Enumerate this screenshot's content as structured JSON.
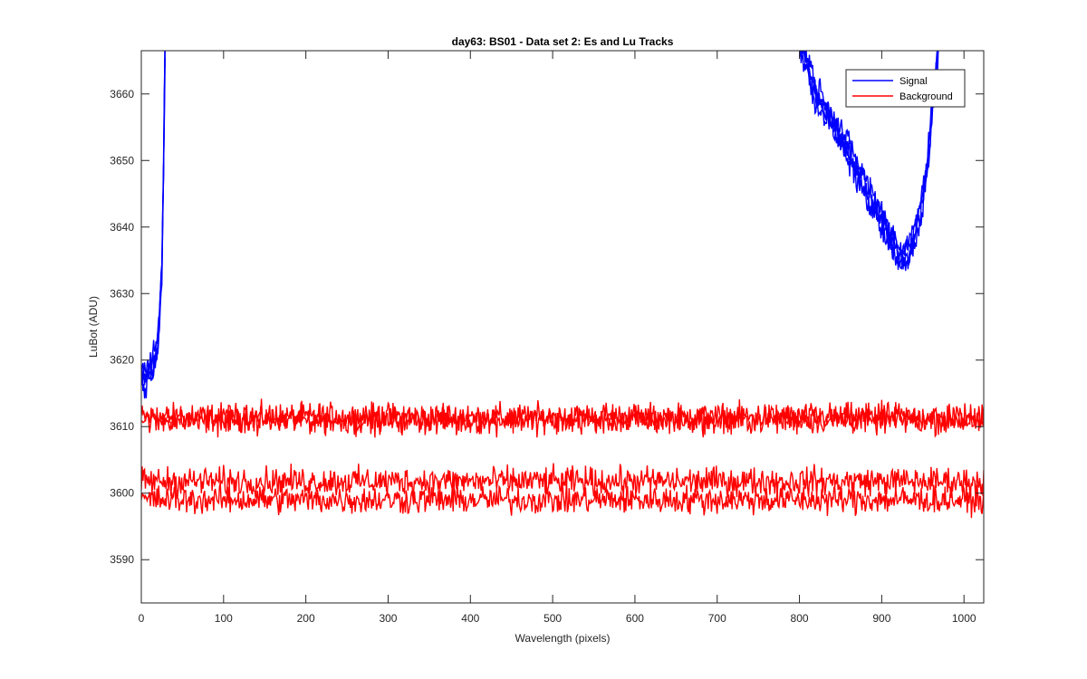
{
  "chart_data": {
    "type": "line",
    "title": "day63: BS01 - Data set 2: Es and Lu Tracks",
    "xlabel": "Wavelength (pixels)",
    "ylabel": "LuBot (ADU)",
    "xlim": [
      0,
      1024
    ],
    "ylim": [
      3583.5,
      3666.5
    ],
    "xticks": [
      0,
      100,
      200,
      300,
      400,
      500,
      600,
      700,
      800,
      900,
      1000
    ],
    "yticks": [
      3590,
      3600,
      3610,
      3620,
      3630,
      3640,
      3650,
      3660
    ],
    "grid": false,
    "box": true,
    "legend": {
      "location": "top-right",
      "entries": [
        {
          "name": "Signal",
          "color": "#0000ff"
        },
        {
          "name": "Background",
          "color": "#ff0000"
        }
      ]
    },
    "series": [
      {
        "name": "Signal",
        "color": "#0000ff",
        "traces": 4,
        "noise": 1.4,
        "points": [
          [
            0,
            3617
          ],
          [
            8,
            3618
          ],
          [
            14,
            3619
          ],
          [
            18,
            3621
          ],
          [
            22,
            3626
          ],
          [
            25,
            3634
          ],
          [
            27,
            3648
          ],
          [
            29,
            3668
          ],
          [
            800,
            3668
          ],
          [
            808,
            3665
          ],
          [
            820,
            3660
          ],
          [
            840,
            3656
          ],
          [
            860,
            3651
          ],
          [
            880,
            3646
          ],
          [
            900,
            3641
          ],
          [
            915,
            3637
          ],
          [
            925,
            3635
          ],
          [
            935,
            3637
          ],
          [
            945,
            3641
          ],
          [
            955,
            3649
          ],
          [
            963,
            3660
          ],
          [
            970,
            3668
          ]
        ]
      },
      {
        "name": "Background",
        "color": "#ff0000",
        "traces": 4,
        "noise": 1.3,
        "levels": [
          3611.4,
          3611.0,
          3601.8,
          3599.0
        ]
      }
    ]
  }
}
